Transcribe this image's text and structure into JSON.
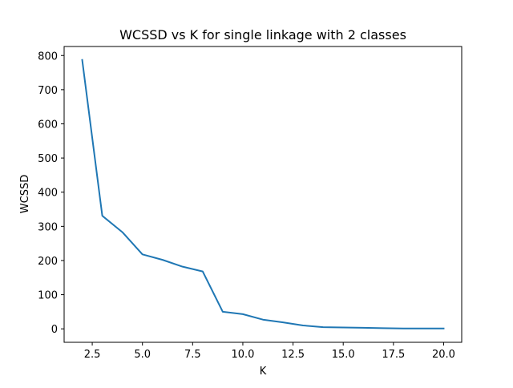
{
  "chart_data": {
    "type": "line",
    "title": "WCSSD vs K for single linkage with 2 classes",
    "xlabel": "K",
    "ylabel": "WCSSD",
    "xlim": [
      1.1,
      20.9
    ],
    "ylim": [
      -39.4,
      826.4
    ],
    "xticks": [
      2.5,
      5.0,
      7.5,
      10.0,
      12.5,
      15.0,
      17.5,
      20.0
    ],
    "xtick_labels": [
      "2.5",
      "5.0",
      "7.5",
      "10.0",
      "12.5",
      "15.0",
      "17.5",
      "20.0"
    ],
    "yticks": [
      0,
      100,
      200,
      300,
      400,
      500,
      600,
      700,
      800
    ],
    "ytick_labels": [
      "0",
      "100",
      "200",
      "300",
      "400",
      "500",
      "600",
      "700",
      "800"
    ],
    "grid": false,
    "series": [
      {
        "name": "WCSSD",
        "color": "#1f77b4",
        "x": [
          2,
          3,
          4,
          5,
          6,
          7,
          8,
          9,
          10,
          11,
          12,
          13,
          14,
          15,
          16,
          17,
          18,
          19,
          20
        ],
        "y": [
          787,
          331,
          283,
          218,
          202,
          182,
          168,
          50,
          43,
          27,
          19,
          10,
          5,
          4,
          3,
          2,
          1,
          1,
          1
        ]
      }
    ]
  }
}
